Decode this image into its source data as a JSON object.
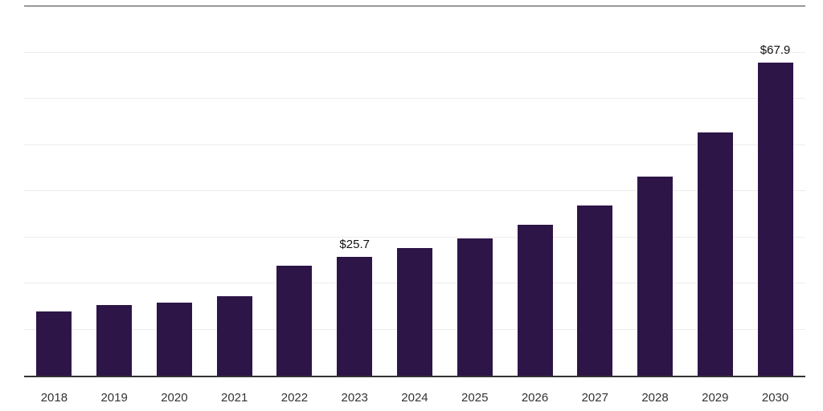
{
  "chart_data": {
    "type": "bar",
    "title": "",
    "xlabel": "",
    "ylabel": "",
    "categories": [
      "2018",
      "2019",
      "2020",
      "2021",
      "2022",
      "2023",
      "2024",
      "2025",
      "2026",
      "2027",
      "2028",
      "2029",
      "2030"
    ],
    "values": [
      13.9,
      15.3,
      15.9,
      17.3,
      23.9,
      25.7,
      27.6,
      29.8,
      32.7,
      36.8,
      43.2,
      52.7,
      67.9
    ],
    "data_labels": [
      null,
      null,
      null,
      null,
      null,
      "$25.7",
      null,
      null,
      null,
      null,
      null,
      null,
      "$67.9"
    ],
    "ylim": [
      0,
      80
    ],
    "grid_step": 10,
    "grid": "on",
    "legend": "none",
    "bar_color": "#2d1547",
    "grid_color": "#ececec",
    "top_border_color": "#3d3d3d",
    "axis_color": "#333333",
    "label_color": "#111111"
  }
}
